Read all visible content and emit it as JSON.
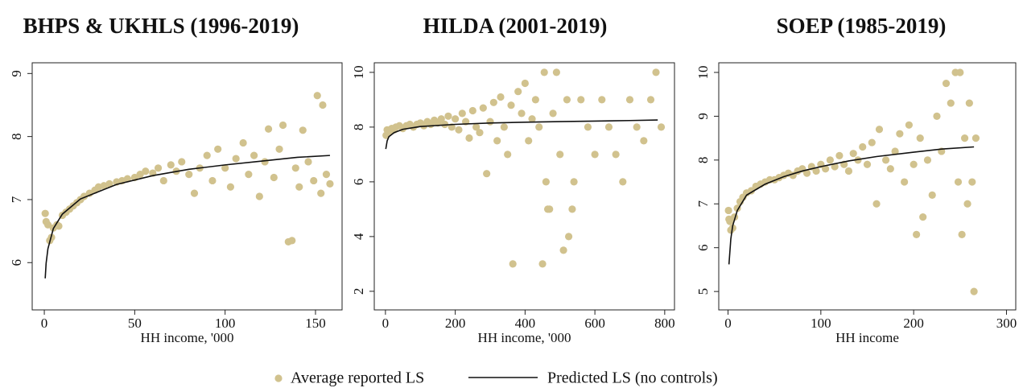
{
  "chart_data": [
    {
      "type": "scatter",
      "title": "BHPS & UKHLS (1996-2019)",
      "x_label": "HH income, '000",
      "xlim": [
        -6.7,
        164.7
      ],
      "ylim": [
        5.25,
        9.17
      ],
      "xticks": [
        0,
        50,
        100,
        150
      ],
      "yticks": [
        6,
        7,
        8,
        9
      ],
      "series": [
        {
          "name": "Average reported LS",
          "kind": "points",
          "color": "#d1c28e",
          "x": [
            0.5,
            1,
            2,
            3,
            4,
            5,
            7,
            8,
            10,
            12,
            14,
            16,
            18,
            20,
            22,
            25,
            28,
            30,
            33,
            36,
            40,
            43,
            46,
            50,
            53,
            56,
            60,
            63,
            66,
            70,
            73,
            76,
            80,
            83,
            86,
            90,
            93,
            96,
            100,
            103,
            106,
            110,
            113,
            116,
            119,
            122,
            124,
            127,
            130,
            132,
            135,
            137,
            139,
            141,
            143,
            146,
            149,
            151,
            153,
            154,
            156,
            158
          ],
          "values": [
            6.78,
            6.65,
            6.6,
            6.35,
            6.4,
            6.55,
            6.6,
            6.58,
            6.75,
            6.8,
            6.85,
            6.9,
            6.95,
            7.0,
            7.05,
            7.1,
            7.15,
            7.2,
            7.22,
            7.25,
            7.28,
            7.3,
            7.33,
            7.35,
            7.4,
            7.45,
            7.42,
            7.5,
            7.3,
            7.55,
            7.45,
            7.6,
            7.4,
            7.1,
            7.5,
            7.7,
            7.3,
            7.8,
            7.5,
            7.2,
            7.65,
            7.9,
            7.4,
            7.7,
            7.05,
            7.6,
            8.12,
            7.35,
            7.8,
            8.18,
            6.33,
            6.35,
            7.5,
            7.2,
            8.1,
            7.6,
            7.3,
            8.65,
            7.1,
            8.5,
            7.4,
            7.25
          ]
        },
        {
          "name": "Predicted LS (no controls)",
          "kind": "line",
          "color": "#111111",
          "x": [
            0.5,
            1,
            2,
            5,
            10,
            20,
            40,
            60,
            80,
            100,
            120,
            140,
            158
          ],
          "values": [
            5.75,
            5.99,
            6.22,
            6.54,
            6.77,
            7.01,
            7.24,
            7.38,
            7.48,
            7.55,
            7.61,
            7.67,
            7.7
          ]
        }
      ]
    },
    {
      "type": "scatter",
      "title": "HILDA (2001-2019)",
      "x_label": "HH income, '000",
      "xlim": [
        -32,
        828
      ],
      "ylim": [
        1.32,
        10.35
      ],
      "xticks": [
        0,
        200,
        400,
        600,
        800
      ],
      "yticks": [
        2,
        4,
        6,
        8,
        10
      ],
      "series": [
        {
          "kind": "points",
          "color": "#d1c28e",
          "x": [
            2,
            5,
            8,
            12,
            18,
            25,
            30,
            40,
            50,
            60,
            70,
            80,
            90,
            100,
            110,
            120,
            130,
            140,
            150,
            160,
            170,
            180,
            190,
            200,
            210,
            220,
            230,
            240,
            250,
            260,
            270,
            280,
            290,
            300,
            310,
            320,
            330,
            340,
            350,
            360,
            365,
            380,
            390,
            400,
            410,
            420,
            430,
            440,
            450,
            455,
            460,
            465,
            470,
            480,
            490,
            500,
            510,
            520,
            525,
            535,
            540,
            560,
            580,
            600,
            620,
            640,
            660,
            680,
            700,
            720,
            740,
            760,
            775,
            790
          ],
          "values": [
            7.7,
            7.9,
            7.8,
            7.85,
            7.95,
            7.9,
            8.0,
            8.05,
            7.95,
            8.05,
            8.1,
            8.0,
            8.1,
            8.15,
            8.05,
            8.2,
            8.1,
            8.25,
            8.15,
            8.3,
            8.1,
            8.4,
            8.0,
            8.3,
            7.9,
            8.5,
            8.2,
            7.6,
            8.6,
            8.0,
            7.8,
            8.7,
            6.3,
            8.2,
            8.9,
            7.5,
            9.1,
            8.0,
            7.0,
            8.8,
            3.0,
            9.3,
            8.5,
            9.6,
            7.5,
            8.3,
            9.0,
            8.0,
            3.0,
            10.0,
            6.0,
            5.0,
            5.0,
            8.5,
            10.0,
            7.0,
            3.5,
            9.0,
            4.0,
            5.0,
            6.0,
            9.0,
            8.0,
            7.0,
            9.0,
            8.0,
            7.0,
            6.0,
            9.0,
            8.0,
            7.5,
            9.0,
            10.0,
            8.0
          ]
        },
        {
          "kind": "line",
          "color": "#111111",
          "x": [
            1,
            5,
            10,
            25,
            50,
            100,
            200,
            300,
            400,
            500,
            600,
            700,
            780
          ],
          "values": [
            7.2,
            7.5,
            7.65,
            7.8,
            7.92,
            8.02,
            8.1,
            8.15,
            8.18,
            8.2,
            8.22,
            8.24,
            8.26
          ]
        }
      ]
    },
    {
      "type": "scatter",
      "title": "SOEP (1985-2019)",
      "x_label": "HH income",
      "xlim": [
        -10,
        310
      ],
      "ylim": [
        4.58,
        10.22
      ],
      "xticks": [
        0,
        100,
        200,
        300
      ],
      "yticks": [
        5,
        6,
        7,
        8,
        9,
        10
      ],
      "series": [
        {
          "kind": "points",
          "color": "#d1c28e",
          "x": [
            0.5,
            1,
            2,
            3,
            5,
            7,
            10,
            13,
            16,
            20,
            25,
            30,
            35,
            40,
            45,
            50,
            55,
            60,
            65,
            70,
            75,
            80,
            85,
            90,
            95,
            100,
            105,
            110,
            115,
            120,
            125,
            130,
            135,
            140,
            145,
            150,
            155,
            160,
            163,
            170,
            175,
            180,
            185,
            190,
            195,
            200,
            203,
            207,
            210,
            215,
            220,
            225,
            230,
            235,
            240,
            245,
            248,
            250,
            252,
            255,
            258,
            260,
            263,
            265,
            267
          ],
          "values": [
            6.85,
            6.65,
            6.6,
            6.4,
            6.45,
            6.7,
            6.9,
            7.05,
            7.15,
            7.25,
            7.3,
            7.4,
            7.45,
            7.5,
            7.55,
            7.55,
            7.6,
            7.65,
            7.7,
            7.65,
            7.75,
            7.8,
            7.7,
            7.85,
            7.75,
            7.9,
            7.8,
            8.0,
            7.85,
            8.1,
            7.9,
            7.75,
            8.15,
            8.0,
            8.3,
            7.9,
            8.4,
            7.0,
            8.7,
            8.0,
            7.8,
            8.2,
            8.6,
            7.5,
            8.8,
            7.9,
            6.3,
            8.5,
            6.7,
            8.0,
            7.2,
            9.0,
            8.2,
            9.75,
            9.3,
            10.0,
            7.5,
            10.0,
            6.3,
            8.5,
            7.0,
            9.3,
            7.5,
            5.0,
            8.5
          ]
        },
        {
          "kind": "line",
          "color": "#111111",
          "x": [
            1,
            3,
            5,
            10,
            20,
            40,
            60,
            80,
            100,
            130,
            160,
            200,
            230,
            265
          ],
          "values": [
            5.62,
            6.2,
            6.5,
            6.85,
            7.2,
            7.45,
            7.62,
            7.75,
            7.85,
            7.98,
            8.08,
            8.18,
            8.25,
            8.3
          ]
        }
      ]
    }
  ]
}
